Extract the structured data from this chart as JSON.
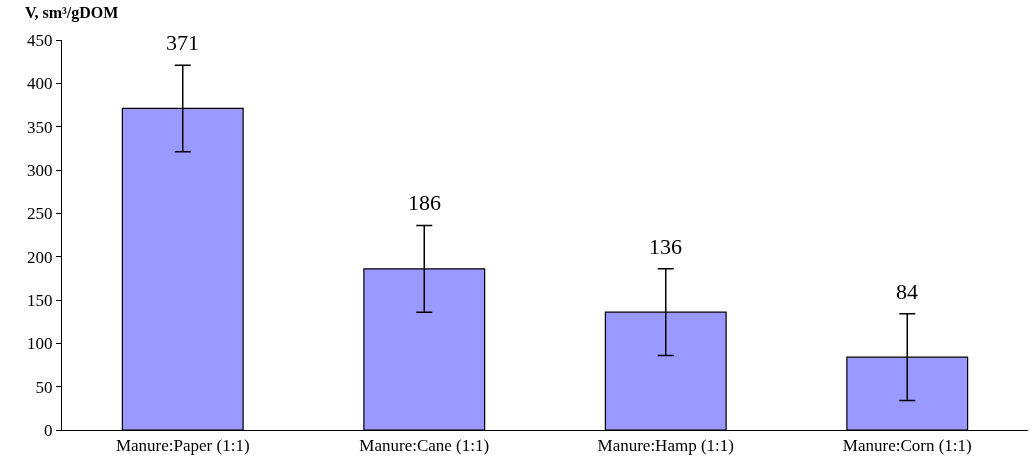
{
  "chart_data": {
    "type": "bar",
    "ylabel": "V, sm³/gDOM",
    "categories": [
      "Manure:Paper (1:1)",
      "Manure:Cane (1:1)",
      "Manure:Hamp (1:1)",
      "Manure:Corn (1:1)"
    ],
    "values": [
      371,
      186,
      136,
      84
    ],
    "errors": [
      50,
      50,
      50,
      50
    ],
    "color": "#9999ff",
    "data_labels": true,
    "ylim": [
      0,
      450
    ],
    "yticks": [
      0,
      50,
      100,
      150,
      200,
      250,
      300,
      350,
      400,
      450
    ]
  }
}
